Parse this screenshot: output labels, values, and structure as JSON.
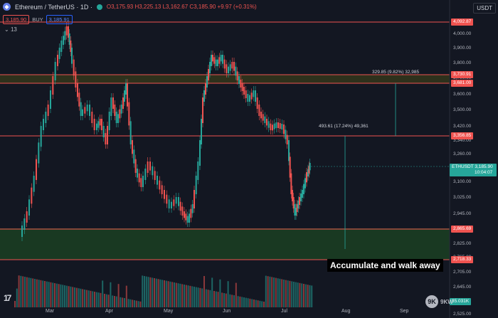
{
  "header": {
    "title": "Ethereum / TetherUS · 1D ·",
    "ohlc": "O3,175.93 H3,225.13 L3,162.67 C3,185.90 +9.97 (+0.31%)",
    "sell_price": "3,185.90",
    "buy_label": "BUY",
    "buy_price": "3,185.91",
    "indicator_count": "13",
    "currency": "USDT"
  },
  "levels": [
    {
      "label": "4,092.87",
      "color": "#ef5350"
    },
    {
      "label": "3,730.91",
      "color": "#ef5350"
    },
    {
      "label": "3,681.00",
      "color": "#ef5350"
    },
    {
      "label": "3,356.85",
      "color": "#ef5350"
    },
    {
      "label": "2,865.69",
      "color": "#ef5350"
    },
    {
      "label": "2,718.33",
      "color": "#ef5350"
    }
  ],
  "current_price": {
    "symbol": "ETHUSDT",
    "price": "3,185.90",
    "countdown": "10:04:07"
  },
  "volume_tag": "35.031K",
  "price_axis": [
    "4,000.00",
    "3,900.00",
    "3,800.00",
    "3,700.00",
    "3,600.00",
    "3,500.00",
    "3,420.00",
    "3,340.00",
    "3,260.00",
    "3,100.00",
    "3,025.00",
    "2,945.00",
    "2,885.00",
    "2,825.00",
    "2,765.00",
    "2,705.00",
    "2,645.00",
    "2,585.00",
    "2,525.00"
  ],
  "time_axis": [
    "Mar",
    "Apr",
    "May",
    "Jun",
    "Jul",
    "Aug",
    "Sep"
  ],
  "measure_1": "329.85 (9.82%) 32,985",
  "measure_2": "493.61 (17.24%) 49,361",
  "annotation": "Accumulate and walk away",
  "watermark": {
    "logo": "9K",
    "text": "9KW"
  },
  "colors": {
    "up": "#26a69a",
    "down": "#ef5350",
    "zone": "#1e4620",
    "line": "#ef5350",
    "yellow": "#d4c02a"
  }
}
